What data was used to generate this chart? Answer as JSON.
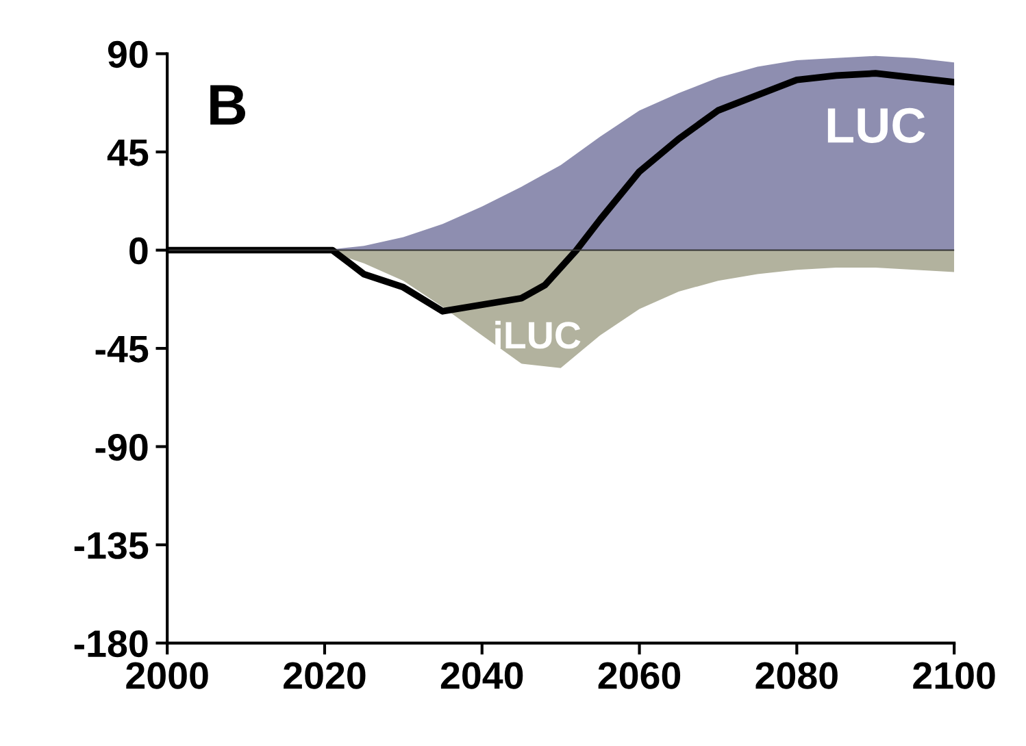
{
  "chart_data": {
    "type": "area",
    "title": "B",
    "series": [
      {
        "name": "LUC",
        "color": "#8e8eb0",
        "x": [
          2000,
          2020,
          2025,
          2030,
          2035,
          2040,
          2045,
          2050,
          2055,
          2060,
          2065,
          2070,
          2075,
          2080,
          2085,
          2090,
          2095,
          2100
        ],
        "values": [
          0,
          0,
          2,
          6,
          12,
          20,
          29,
          39,
          52,
          64,
          72,
          79,
          84,
          87,
          88,
          89,
          88,
          86
        ]
      },
      {
        "name": "iLUC",
        "color": "#b2b29e",
        "x": [
          2000,
          2020,
          2025,
          2030,
          2035,
          2040,
          2045,
          2050,
          2055,
          2060,
          2065,
          2070,
          2075,
          2080,
          2085,
          2090,
          2095,
          2100
        ],
        "values": [
          0,
          0,
          -6,
          -14,
          -26,
          -39,
          -52,
          -54,
          -39,
          -27,
          -19,
          -14,
          -11,
          -9,
          -8,
          -8,
          -9,
          -10
        ]
      },
      {
        "type": "line",
        "color": "#000000",
        "x": [
          2000,
          2021,
          2025,
          2030,
          2035,
          2040,
          2045,
          2048,
          2052,
          2055,
          2060,
          2065,
          2070,
          2075,
          2080,
          2085,
          2090,
          2095,
          2100
        ],
        "values": [
          0,
          0,
          -11,
          -17,
          -28,
          -25,
          -22,
          -16,
          0,
          14,
          36,
          51,
          64,
          71,
          78,
          80,
          81,
          79,
          77
        ]
      }
    ],
    "ref_lines": [
      {
        "axis": "y",
        "value": 0,
        "color": "#333333"
      }
    ],
    "xlim": [
      2000,
      2100
    ],
    "xticks": [
      2000,
      2020,
      2040,
      2060,
      2080,
      2100
    ],
    "ylim": [
      -180,
      90
    ],
    "yticks": [
      -180,
      -135,
      -90,
      -45,
      0,
      45,
      90
    ],
    "grid": false,
    "legend": false
  }
}
